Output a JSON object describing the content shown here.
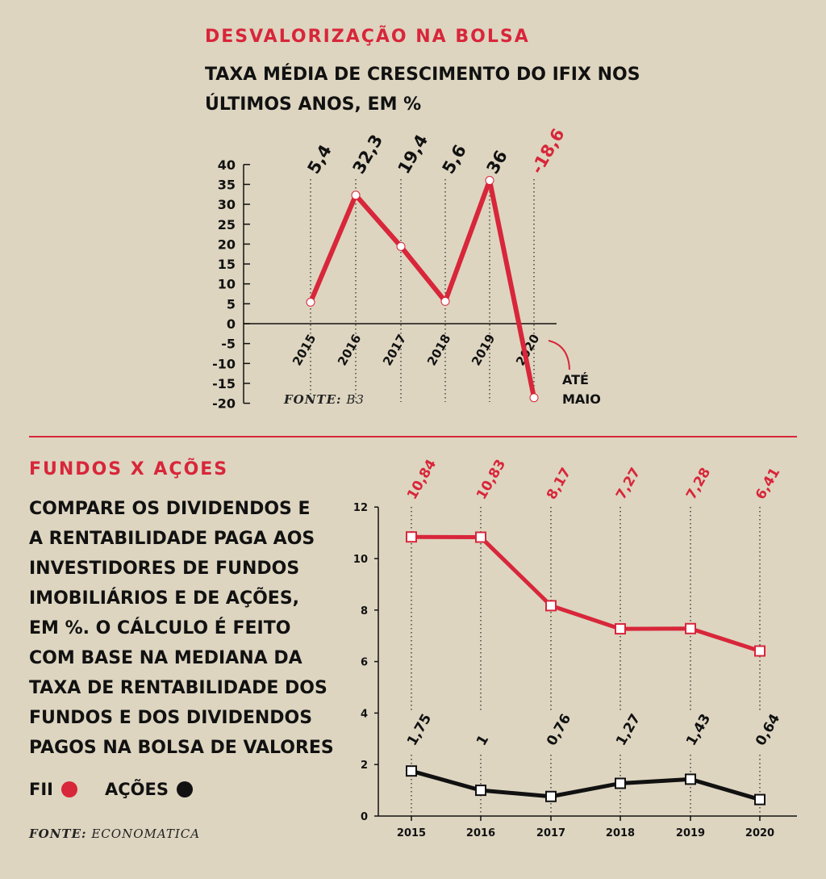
{
  "section1": {
    "kicker": "DESVALORIZAÇÃO NA BOLSA",
    "headline_line1": "TAXA MÉDIA DE CRESCIMENTO DO IFIX NOS",
    "headline_line2": "ÚLTIMOS ANOS, EM %",
    "source_key": "FONTE:",
    "source_val": "B3",
    "note_line1": "ATÉ",
    "note_line2": "MAIO"
  },
  "section2": {
    "kicker": "FUNDOS X AÇÕES",
    "text_lines": [
      "COMPARE OS DIVIDENDOS E",
      "A RENTABILIDADE PAGA AOS",
      "INVESTIDORES DE FUNDOS",
      "IMOBILIÁRIOS E DE AÇÕES,",
      "EM %. O CÁLCULO É FEITO",
      "COM BASE NA MEDIANA DA",
      "TAXA DE RENTABILIDADE DOS",
      "FUNDOS E DOS DIVIDENDOS",
      "PAGOS NA BOLSA DE VALORES"
    ],
    "legend": [
      {
        "label": "FII",
        "color": "#d8263a"
      },
      {
        "label": "AÇÕES",
        "color": "#111111"
      }
    ],
    "source_key": "FONTE:",
    "source_val": "ECONOMATICA"
  },
  "colors": {
    "red": "#d8263a",
    "black": "#111111",
    "background": "#ddd5c0"
  },
  "chart_data": [
    {
      "type": "line",
      "categories": [
        "2015",
        "2016",
        "2017",
        "2018",
        "2019",
        "2020"
      ],
      "values": [
        5.4,
        32.3,
        19.4,
        5.6,
        36,
        -18.6
      ],
      "value_labels": [
        "5,4",
        "32,3",
        "19,4",
        "5,6",
        "36",
        "-18,6"
      ],
      "highlight_label_index": 5,
      "yticks": [
        "40",
        "35",
        "30",
        "25",
        "20",
        "15",
        "10",
        "5",
        "0",
        "-5",
        "-10",
        "-15",
        "-20"
      ],
      "ylim": [
        -20,
        40
      ],
      "grid": false,
      "color": "#d8263a"
    },
    {
      "type": "line",
      "categories": [
        "2015",
        "2016",
        "2017",
        "2018",
        "2019",
        "2020"
      ],
      "yticks": [
        "12",
        "10",
        "8",
        "6",
        "4",
        "2",
        "0"
      ],
      "ylim": [
        0,
        12
      ],
      "grid": false,
      "series": [
        {
          "name": "FII",
          "color": "#d8263a",
          "values": [
            10.84,
            10.83,
            8.17,
            7.27,
            7.28,
            6.41
          ],
          "labels": [
            "10,84",
            "10,83",
            "8,17",
            "7,27",
            "7,28",
            "6,41"
          ]
        },
        {
          "name": "AÇÕES",
          "color": "#111111",
          "values": [
            1.75,
            1,
            0.76,
            1.27,
            1.43,
            0.64
          ],
          "labels": [
            "1,75",
            "1",
            "0,76",
            "1,27",
            "1,43",
            "0,64"
          ]
        }
      ]
    }
  ]
}
